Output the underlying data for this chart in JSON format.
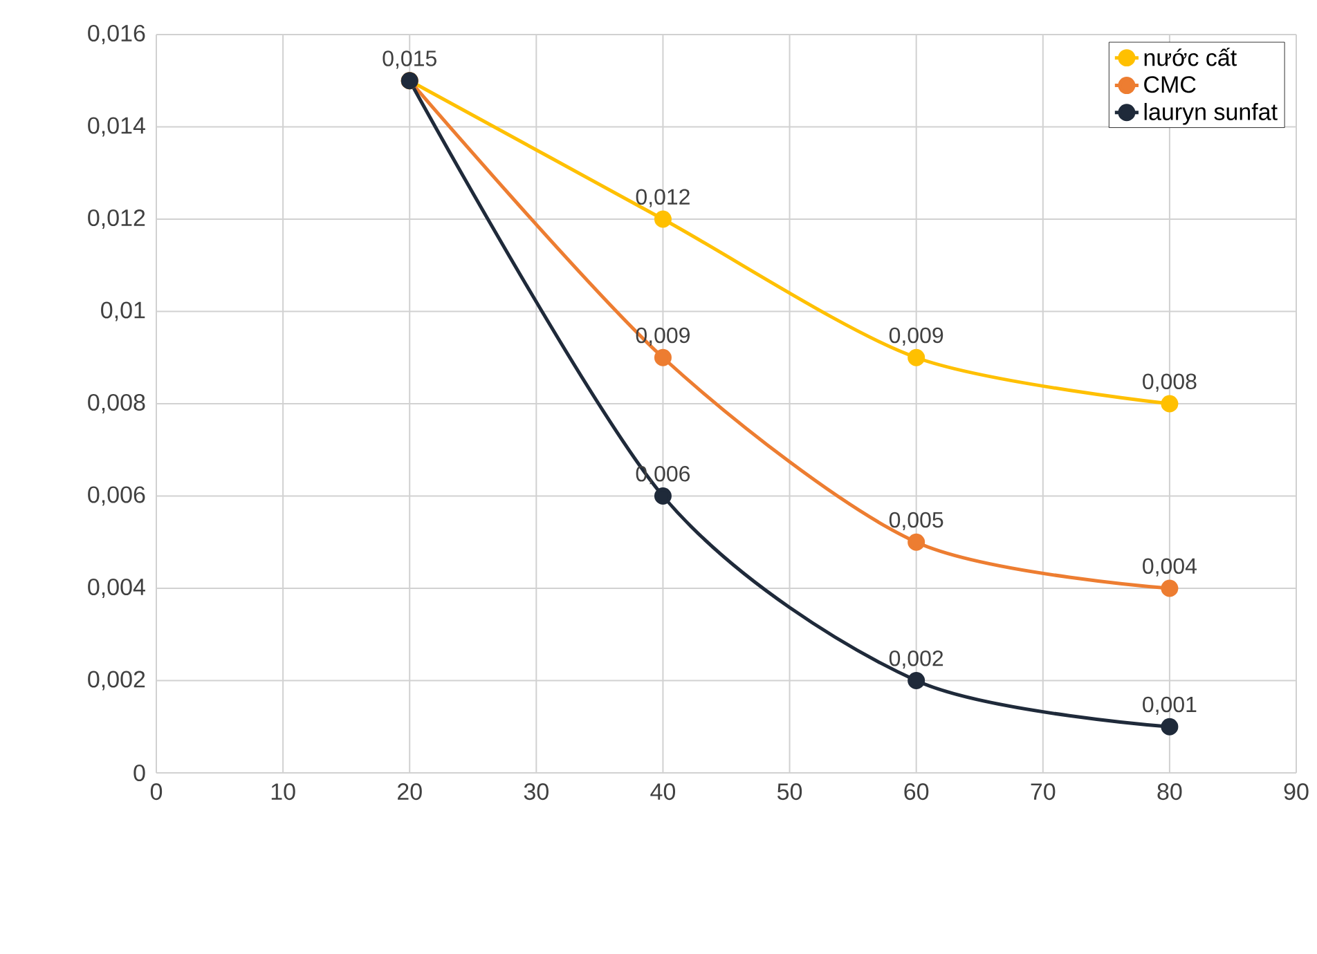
{
  "chart_data": {
    "type": "line",
    "x": [
      20,
      40,
      60,
      80
    ],
    "series": [
      {
        "name": "nước cất",
        "color": "#ffc000",
        "values": [
          0.015,
          0.012,
          0.009,
          0.008
        ],
        "value_labels": [
          "0,015",
          "0,012",
          "0,009",
          "0,008"
        ]
      },
      {
        "name": "CMC",
        "color": "#ed7d31",
        "values": [
          0.015,
          0.009,
          0.005,
          0.004
        ],
        "value_labels": [
          null,
          "0,009",
          "0,005",
          "0,004"
        ]
      },
      {
        "name": "lauryn sunfat",
        "color": "#1f2a3a",
        "values": [
          0.015,
          0.006,
          0.002,
          0.001
        ],
        "value_labels": [
          null,
          "0,006",
          "0,002",
          "0,001"
        ]
      }
    ],
    "xlim": [
      0,
      90
    ],
    "xticks": [
      0,
      10,
      20,
      30,
      40,
      50,
      60,
      70,
      80,
      90
    ],
    "ylim": [
      0,
      0.016
    ],
    "yticks": [
      0,
      {
        "value": 0.002,
        "label": "0,002"
      },
      {
        "value": 0.004,
        "label": "0,004"
      },
      {
        "value": 0.006,
        "label": "0,006"
      },
      {
        "value": 0.008,
        "label": "0,008"
      },
      {
        "value": 0.01,
        "label": "0,01"
      },
      {
        "value": 0.012,
        "label": "0,012"
      },
      {
        "value": 0.014,
        "label": "0,014"
      },
      {
        "value": 0.016,
        "label": "0,016"
      }
    ],
    "grid": true,
    "legend": "top right",
    "marker": "circle",
    "line_style": "solid"
  }
}
